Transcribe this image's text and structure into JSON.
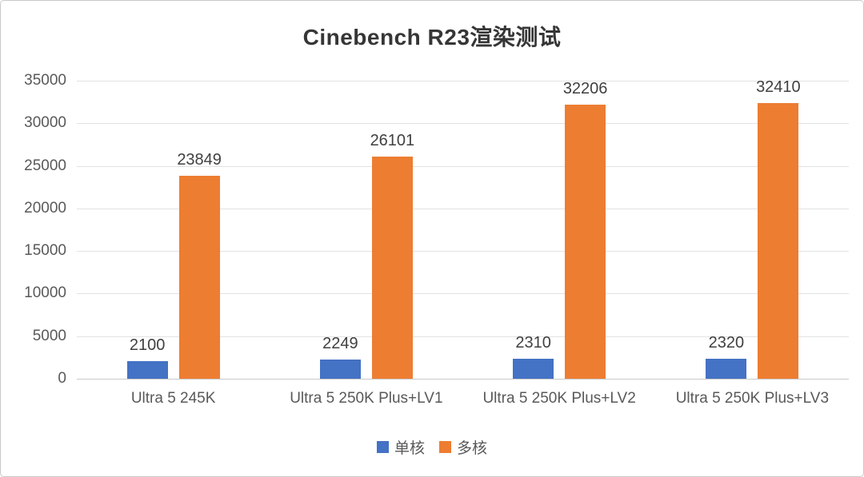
{
  "chart_data": {
    "type": "bar",
    "title": "Cinebench R23渲染测试",
    "categories": [
      "Ultra 5 245K",
      "Ultra 5 250K Plus+LV1",
      "Ultra 5 250K Plus+LV2",
      "Ultra 5 250K Plus+LV3"
    ],
    "series": [
      {
        "name": "单核",
        "color": "#4472C4",
        "values": [
          2100,
          2249,
          2310,
          2320
        ]
      },
      {
        "name": "多核",
        "color": "#ED7D31",
        "values": [
          23849,
          26101,
          32206,
          32410
        ]
      }
    ],
    "ylabel": "",
    "xlabel": "",
    "ylim": [
      0,
      35000
    ],
    "ytick_step": 5000,
    "ytick_labels": [
      "0",
      "5000",
      "10000",
      "15000",
      "20000",
      "25000",
      "30000",
      "35000"
    ],
    "grid": true,
    "data_labels": true,
    "legend_position": "bottom",
    "colors": {
      "gridline": "#e2e2e2",
      "axis_line": "#c9c9c9",
      "tick_text": "#595959",
      "data_label_text": "#404040",
      "title_text": "#363636"
    }
  }
}
